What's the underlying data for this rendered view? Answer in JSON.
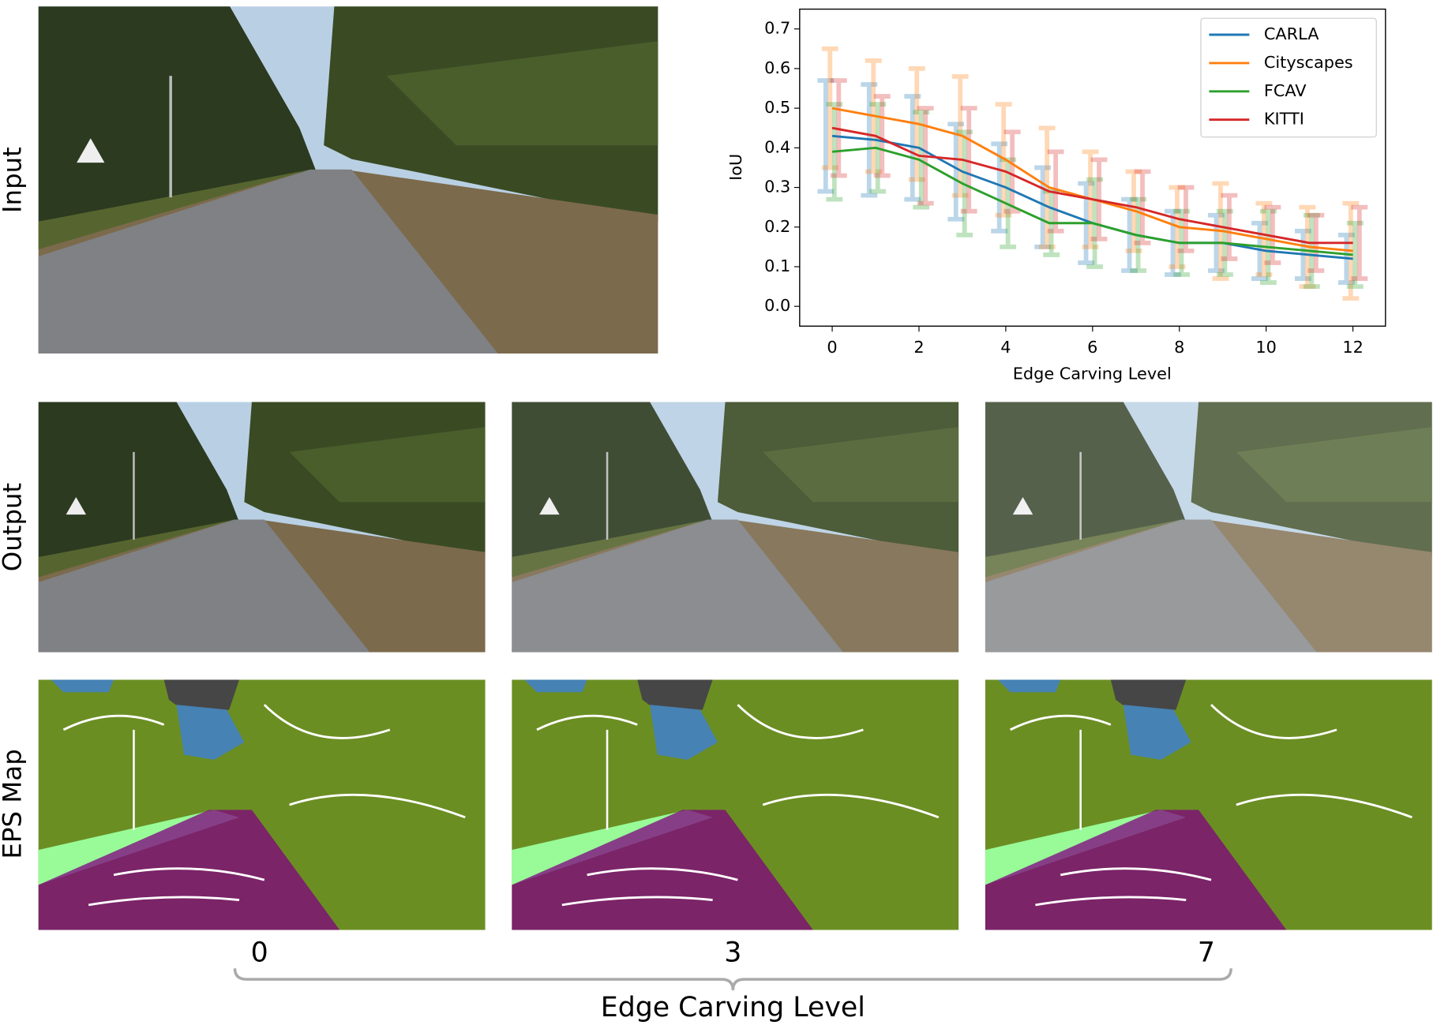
{
  "chart_data": {
    "type": "line",
    "xlabel": "Edge Carving Level",
    "ylabel": "IoU",
    "x": [
      0,
      1,
      2,
      3,
      4,
      5,
      6,
      7,
      8,
      9,
      10,
      11,
      12
    ],
    "series": [
      {
        "name": "CARLA",
        "color": "#1f77b4",
        "values": [
          0.43,
          0.42,
          0.4,
          0.34,
          0.3,
          0.25,
          0.21,
          0.18,
          0.16,
          0.16,
          0.14,
          0.13,
          0.12
        ],
        "errors": [
          0.14,
          0.14,
          0.13,
          0.12,
          0.11,
          0.1,
          0.1,
          0.09,
          0.08,
          0.07,
          0.07,
          0.06,
          0.06
        ]
      },
      {
        "name": "Cityscapes",
        "color": "#ff7f0e",
        "values": [
          0.5,
          0.48,
          0.46,
          0.43,
          0.37,
          0.3,
          0.27,
          0.24,
          0.2,
          0.19,
          0.17,
          0.15,
          0.14
        ],
        "errors": [
          0.15,
          0.14,
          0.14,
          0.15,
          0.14,
          0.15,
          0.12,
          0.1,
          0.1,
          0.12,
          0.09,
          0.1,
          0.12
        ]
      },
      {
        "name": "FCAV",
        "color": "#2ca02c",
        "values": [
          0.39,
          0.4,
          0.37,
          0.31,
          0.26,
          0.21,
          0.21,
          0.18,
          0.16,
          0.16,
          0.15,
          0.14,
          0.13
        ],
        "errors": [
          0.12,
          0.11,
          0.12,
          0.13,
          0.11,
          0.08,
          0.11,
          0.09,
          0.08,
          0.08,
          0.09,
          0.09,
          0.08
        ]
      },
      {
        "name": "KITTI",
        "color": "#d62728",
        "values": [
          0.45,
          0.43,
          0.38,
          0.37,
          0.34,
          0.29,
          0.27,
          0.25,
          0.22,
          0.2,
          0.18,
          0.16,
          0.16
        ],
        "errors": [
          0.12,
          0.1,
          0.12,
          0.13,
          0.1,
          0.1,
          0.1,
          0.09,
          0.08,
          0.08,
          0.07,
          0.07,
          0.09
        ]
      }
    ],
    "xlim": [
      -0.75,
      12.75
    ],
    "xticks": [
      0,
      2,
      4,
      6,
      8,
      10,
      12
    ],
    "ylim": [
      -0.05,
      0.75
    ],
    "yticks": [
      {
        "value": 0,
        "label": "0.0"
      },
      0.1,
      0.2,
      0.3,
      0.4,
      0.5,
      0.6,
      0.7
    ],
    "legend": "upper right",
    "grid": false
  },
  "figure": {
    "row_labels": [
      "Input",
      "Output",
      "EPS Map"
    ],
    "column_labels": [
      "0",
      "3",
      "7"
    ],
    "bottom_label": "Edge Carving Level"
  }
}
